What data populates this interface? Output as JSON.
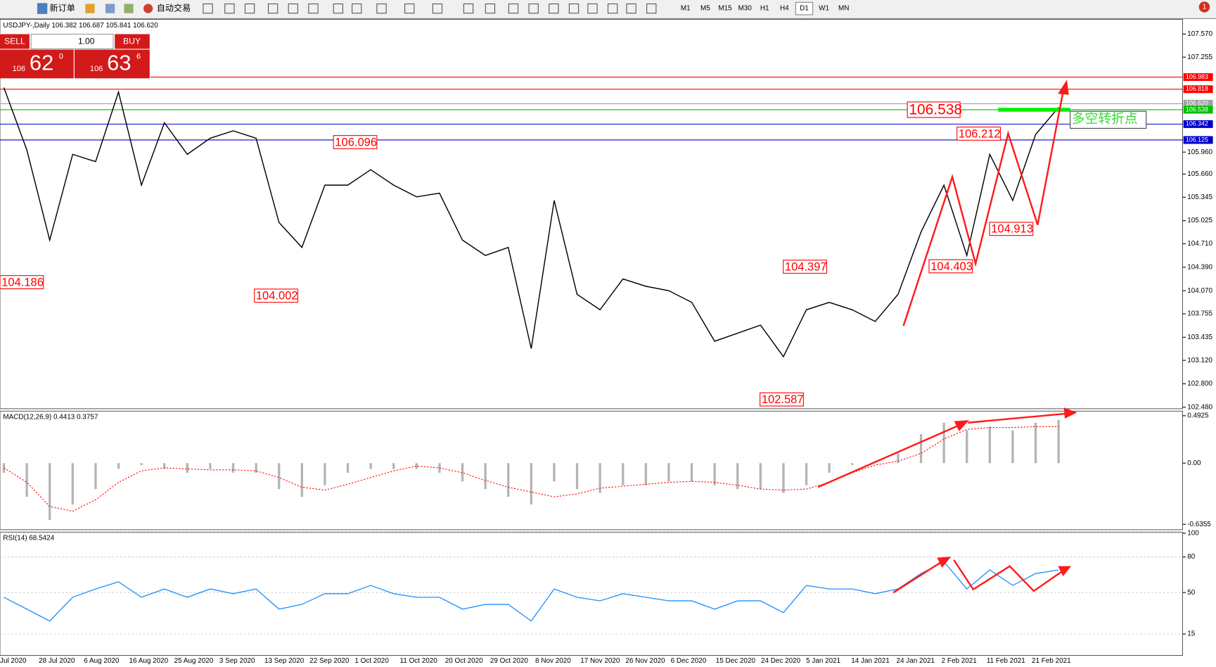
{
  "toolbar": {
    "new_order": "新订单",
    "auto_trade": "自动交易",
    "timeframes": [
      "M1",
      "M5",
      "M15",
      "M30",
      "H1",
      "H4",
      "D1",
      "W1",
      "MN"
    ],
    "alert": "1"
  },
  "trade_panel": {
    "sell": "SELL",
    "buy": "BUY",
    "lots": "1.00",
    "sell_big": "106",
    "sell_main": "62",
    "sell_sup": "0",
    "buy_big": "106",
    "buy_main": "63",
    "buy_sup": "6"
  },
  "chart_data": [
    {
      "type": "line",
      "title": "USDJPY-,Daily 106.382 106.687 105.841 106.620",
      "color": "#000000",
      "date_labels": [
        "Jul 2020",
        "28 Jul 2020",
        "6 Aug 2020",
        "16 Aug 2020",
        "25 Aug 2020",
        "3 Sep 2020",
        "13 Sep 2020",
        "22 Sep 2020",
        "1 Oct 2020",
        "11 Oct 2020",
        "20 Oct 2020",
        "29 Oct 2020",
        "8 Nov 2020",
        "17 Nov 2020",
        "26 Nov 2020",
        "6 Dec 2020",
        "15 Dec 2020",
        "24 Dec 2020",
        "5 Jan 2021",
        "14 Jan 2021",
        "24 Jan 2021",
        "2 Feb 2021",
        "11 Feb 2021",
        "21 Feb 2021"
      ],
      "values": [
        106.84,
        105.99,
        104.76,
        105.93,
        105.83,
        106.78,
        105.51,
        106.36,
        105.93,
        106.15,
        106.25,
        106.15,
        105,
        104.66,
        105.51,
        105.51,
        105.72,
        105.51,
        105.35,
        105.4,
        104.76,
        104.55,
        104.66,
        103.28,
        105.3,
        104.02,
        103.81,
        104.23,
        104.13,
        104.07,
        103.91,
        103.38,
        103.49,
        103.6,
        103.17,
        103.81,
        103.91,
        103.81,
        103.65,
        104.02,
        104.87,
        105.51,
        104.55,
        105.93,
        105.3,
        106.2,
        106.57
      ],
      "ylim": [
        102.46,
        107.77
      ],
      "yticks": [
        {
          "value": 107.57,
          "label": "107.570"
        },
        107.255,
        {
          "value": 105.96,
          "label": "105.960"
        },
        {
          "value": 105.66,
          "label": "105.660"
        },
        105.345,
        105.025,
        {
          "value": 104.71,
          "label": "104.710"
        },
        {
          "value": 104.39,
          "label": "104.390"
        },
        {
          "value": 104.07,
          "label": "104.070"
        },
        103.755,
        103.435,
        {
          "value": 103.12,
          "label": "103.120"
        },
        {
          "value": 102.8,
          "label": "102.800"
        },
        {
          "value": 102.48,
          "label": "102.480"
        }
      ],
      "levels": [
        {
          "value": 106.983,
          "color": "#ff0000"
        },
        {
          "value": 106.818,
          "color": "#ff0000"
        },
        {
          "value": 106.62,
          "label": "106.620",
          "color": "#a0a0a0"
        },
        {
          "value": 106.538,
          "color": "#00c000"
        },
        {
          "value": 106.342,
          "color": "#0000cc"
        },
        {
          "value": 106.125,
          "color": "#0000cc"
        }
      ],
      "annotations": [
        104.186,
        104.002,
        106.096,
        106.538,
        106.212,
        104.397,
        104.403,
        104.913,
        102.587
      ],
      "note": "多空转折点"
    },
    {
      "type": "bar",
      "title": "MACD(12,26,9) 0.4413 0.3757",
      "series": [
        {
          "style": "bar",
          "color": "#b4b4b4",
          "values": [
            -0.1,
            -0.35,
            -0.59,
            -0.43,
            -0.27,
            -0.06,
            -0.02,
            -0.06,
            -0.1,
            -0.06,
            -0.1,
            -0.1,
            -0.27,
            -0.35,
            -0.23,
            -0.1,
            -0.06,
            -0.06,
            -0.06,
            -0.1,
            -0.19,
            -0.27,
            -0.35,
            -0.43,
            -0.19,
            -0.27,
            -0.31,
            -0.23,
            -0.23,
            -0.19,
            -0.19,
            -0.23,
            -0.27,
            -0.27,
            -0.31,
            -0.23,
            -0.1,
            -0.02,
            0.02,
            0.1,
            0.3,
            0.42,
            0.34,
            0.38,
            0.34,
            0.42,
            0.45
          ]
        },
        {
          "style": "dotted",
          "color": "#ff0000",
          "values": [
            -0.05,
            -0.2,
            -0.45,
            -0.5,
            -0.38,
            -0.2,
            -0.08,
            -0.05,
            -0.06,
            -0.07,
            -0.07,
            -0.08,
            -0.15,
            -0.25,
            -0.28,
            -0.22,
            -0.15,
            -0.08,
            -0.03,
            -0.05,
            -0.1,
            -0.18,
            -0.25,
            -0.3,
            -0.35,
            -0.32,
            -0.26,
            -0.24,
            -0.22,
            -0.2,
            -0.19,
            -0.2,
            -0.23,
            -0.27,
            -0.28,
            -0.27,
            -0.2,
            -0.1,
            -0.02,
            0.02,
            0.1,
            0.25,
            0.35,
            0.37,
            0.37,
            0.38,
            0.38
          ]
        }
      ],
      "ylim": [
        -0.692,
        0.541
      ],
      "yticks": [
        0.4925,
        {
          "value": 0,
          "label": "0.00"
        },
        -0.6355
      ]
    },
    {
      "type": "line",
      "title": "RSI(14) 68.5424",
      "color": "#1e90ff",
      "values": [
        46,
        36,
        26,
        46,
        53,
        59,
        46,
        53,
        46,
        53,
        49,
        53,
        36,
        40,
        49,
        49,
        56,
        49,
        46,
        46,
        36,
        40,
        40,
        26,
        53,
        46,
        43,
        49,
        46,
        43,
        43,
        36,
        43,
        43,
        33,
        56,
        53,
        53,
        49,
        53,
        66,
        76,
        53,
        69,
        56,
        66,
        69
      ],
      "ylim": [
        -3,
        101
      ],
      "yticks": [
        100,
        80,
        50,
        15
      ]
    }
  ]
}
